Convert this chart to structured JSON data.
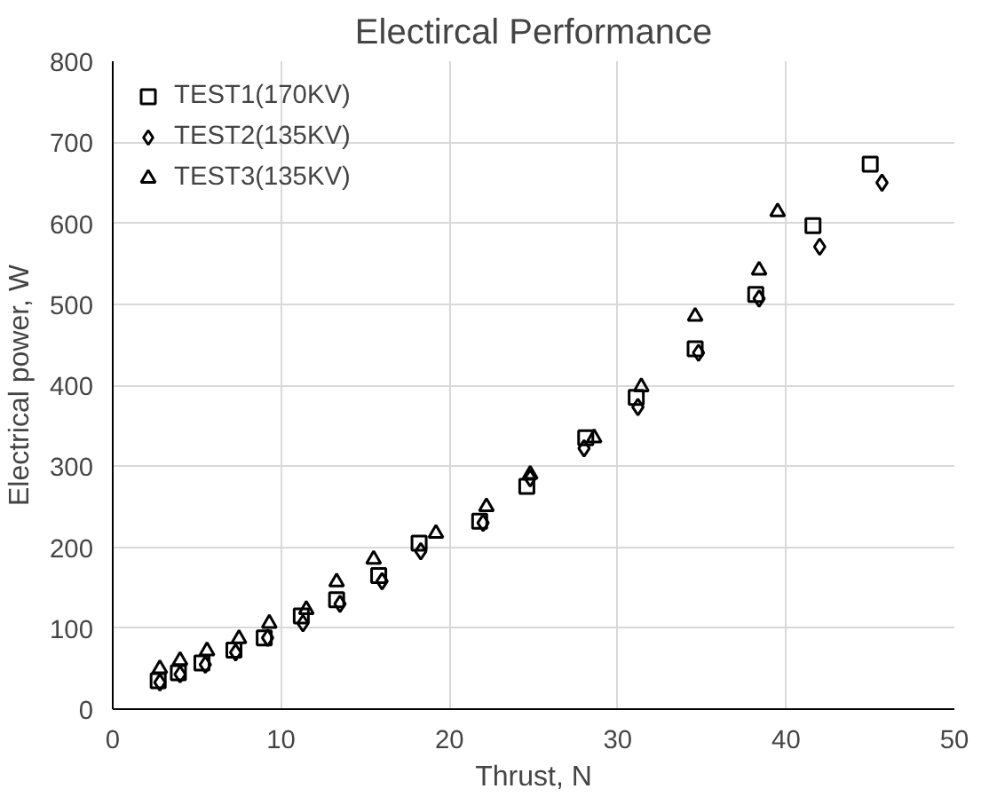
{
  "chart_data": {
    "type": "scatter",
    "title": "Electircal Performance",
    "xlabel": "Thrust, N",
    "ylabel": "Electrical power, W",
    "xlim": [
      0,
      50
    ],
    "xticks": [
      0,
      10,
      20,
      30,
      40,
      50
    ],
    "ylim": [
      0,
      800
    ],
    "yticks": [
      0,
      100,
      200,
      300,
      400,
      500,
      600,
      700,
      800
    ],
    "grid": true,
    "legend": "top left",
    "series": [
      {
        "name": "TEST1(170KV)",
        "color": "#000000",
        "marker": "square",
        "x": [
          2.7,
          3.9,
          5.3,
          7.2,
          9,
          11.2,
          13.3,
          15.8,
          18.2,
          21.8,
          24.6,
          28.1,
          31.1,
          34.6,
          38.2,
          41.6,
          45
        ],
        "values": [
          35,
          45,
          57,
          73,
          88,
          115,
          135,
          165,
          205,
          232,
          275,
          335,
          385,
          445,
          512,
          597,
          673
        ]
      },
      {
        "name": "TEST2(135KV)",
        "color": "#000000",
        "marker": "diamond",
        "x": [
          2.8,
          4,
          5.5,
          7.3,
          9.2,
          11.3,
          13.5,
          16,
          18.3,
          22,
          24.8,
          28,
          31.2,
          34.8,
          38.4,
          42,
          45.7
        ],
        "values": [
          33,
          43,
          55,
          70,
          88,
          106,
          130,
          158,
          195,
          230,
          285,
          322,
          373,
          440,
          507,
          571,
          650
        ]
      },
      {
        "name": "TEST3(135KV)",
        "color": "#000000",
        "marker": "triangle",
        "x": [
          2.8,
          4,
          5.6,
          7.5,
          9.3,
          11.5,
          13.3,
          15.5,
          19.2,
          22.2,
          24.8,
          28.6,
          31.4,
          34.6,
          38.4,
          39.5
        ],
        "values": [
          50,
          60,
          72,
          87,
          106,
          123,
          157,
          185,
          217,
          250,
          290,
          335,
          398,
          485,
          542,
          614
        ]
      }
    ]
  }
}
